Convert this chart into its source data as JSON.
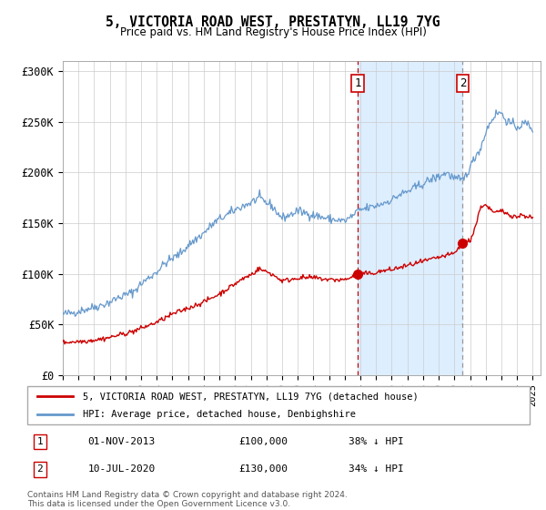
{
  "title": "5, VICTORIA ROAD WEST, PRESTATYN, LL19 7YG",
  "subtitle": "Price paid vs. HM Land Registry's House Price Index (HPI)",
  "legend_line1": "5, VICTORIA ROAD WEST, PRESTATYN, LL19 7YG (detached house)",
  "legend_line2": "HPI: Average price, detached house, Denbighshire",
  "annotation1_date": "01-NOV-2013",
  "annotation1_price": "£100,000",
  "annotation1_hpi": "38% ↓ HPI",
  "annotation2_date": "10-JUL-2020",
  "annotation2_price": "£130,000",
  "annotation2_hpi": "34% ↓ HPI",
  "footer": "Contains HM Land Registry data © Crown copyright and database right 2024.\nThis data is licensed under the Open Government Licence v3.0.",
  "red_color": "#cc0000",
  "blue_color": "#6699cc",
  "shading_color": "#ddeeff",
  "ylim": [
    0,
    310000
  ],
  "yticks": [
    0,
    50000,
    100000,
    150000,
    200000,
    250000,
    300000
  ],
  "ytick_labels": [
    "£0",
    "£50K",
    "£100K",
    "£150K",
    "£200K",
    "£250K",
    "£300K"
  ],
  "purchase1_year": 2013.83,
  "purchase1_value": 100000,
  "purchase2_year": 2020.53,
  "purchase2_value": 130000,
  "xmin": 1995,
  "xmax": 2025.5,
  "blue_anchors_t": [
    1995.0,
    1995.5,
    1996.0,
    1996.5,
    1997.0,
    1997.5,
    1998.0,
    1998.5,
    1999.0,
    1999.5,
    2000.0,
    2000.5,
    2001.0,
    2001.5,
    2002.0,
    2002.5,
    2003.0,
    2003.5,
    2004.0,
    2004.5,
    2005.0,
    2005.5,
    2006.0,
    2006.5,
    2007.0,
    2007.3,
    2007.5,
    2007.8,
    2008.0,
    2008.3,
    2008.7,
    2009.0,
    2009.5,
    2010.0,
    2010.5,
    2011.0,
    2011.5,
    2012.0,
    2012.5,
    2013.0,
    2013.5,
    2013.83,
    2014.0,
    2014.5,
    2015.0,
    2015.5,
    2016.0,
    2016.5,
    2017.0,
    2017.5,
    2018.0,
    2018.5,
    2019.0,
    2019.5,
    2020.0,
    2020.53,
    2021.0,
    2021.3,
    2021.7,
    2022.0,
    2022.3,
    2022.6,
    2022.9,
    2023.0,
    2023.3,
    2023.6,
    2024.0,
    2024.3,
    2024.6,
    2025.0
  ],
  "blue_anchors_v": [
    60000,
    61000,
    63000,
    65000,
    67000,
    69000,
    72000,
    76000,
    79000,
    82000,
    90000,
    96000,
    102000,
    110000,
    115000,
    120000,
    128000,
    134000,
    140000,
    148000,
    154000,
    158000,
    163000,
    167000,
    170000,
    173000,
    175000,
    172000,
    170000,
    168000,
    160000,
    155000,
    158000,
    162000,
    160000,
    158000,
    156000,
    154000,
    153000,
    152000,
    157000,
    162000,
    163000,
    165000,
    167000,
    170000,
    173000,
    178000,
    181000,
    185000,
    189000,
    193000,
    196000,
    200000,
    194000,
    192000,
    205000,
    215000,
    225000,
    240000,
    250000,
    257000,
    260000,
    258000,
    252000,
    248000,
    245000,
    247000,
    249000,
    243000
  ],
  "red_anchors_t": [
    1995.0,
    1995.5,
    1996.0,
    1996.5,
    1997.0,
    1997.5,
    1998.0,
    1998.5,
    1999.0,
    1999.5,
    2000.0,
    2000.5,
    2001.0,
    2001.5,
    2002.0,
    2002.5,
    2003.0,
    2003.5,
    2004.0,
    2004.5,
    2005.0,
    2005.5,
    2006.0,
    2006.5,
    2007.0,
    2007.3,
    2007.5,
    2007.8,
    2008.0,
    2008.3,
    2008.7,
    2009.0,
    2009.5,
    2010.0,
    2010.5,
    2011.0,
    2011.5,
    2012.0,
    2012.5,
    2013.0,
    2013.5,
    2013.83,
    2014.0,
    2014.5,
    2015.0,
    2015.5,
    2016.0,
    2016.5,
    2017.0,
    2017.5,
    2018.0,
    2018.5,
    2019.0,
    2019.5,
    2020.0,
    2020.53,
    2021.0,
    2021.2,
    2021.4,
    2021.6,
    2021.8,
    2022.0,
    2022.2,
    2022.5,
    2022.8,
    2023.0,
    2023.3,
    2023.6,
    2024.0,
    2024.3,
    2024.6,
    2025.0
  ],
  "red_anchors_v": [
    32000,
    32500,
    33000,
    33500,
    34500,
    35500,
    37000,
    39000,
    41000,
    43000,
    46000,
    49000,
    52000,
    56000,
    60000,
    63000,
    66000,
    69000,
    72000,
    76000,
    80000,
    85000,
    90000,
    95000,
    99000,
    102000,
    105000,
    103000,
    102000,
    100000,
    96000,
    93000,
    94000,
    96000,
    96000,
    96000,
    95000,
    94000,
    94000,
    94000,
    97000,
    100000,
    100000,
    100000,
    101000,
    103000,
    104000,
    106000,
    108000,
    110000,
    112000,
    114000,
    116000,
    118000,
    120000,
    130000,
    133000,
    140000,
    150000,
    162000,
    168000,
    168000,
    165000,
    160000,
    161000,
    162000,
    160000,
    158000,
    156000,
    158000,
    157000,
    155000
  ]
}
